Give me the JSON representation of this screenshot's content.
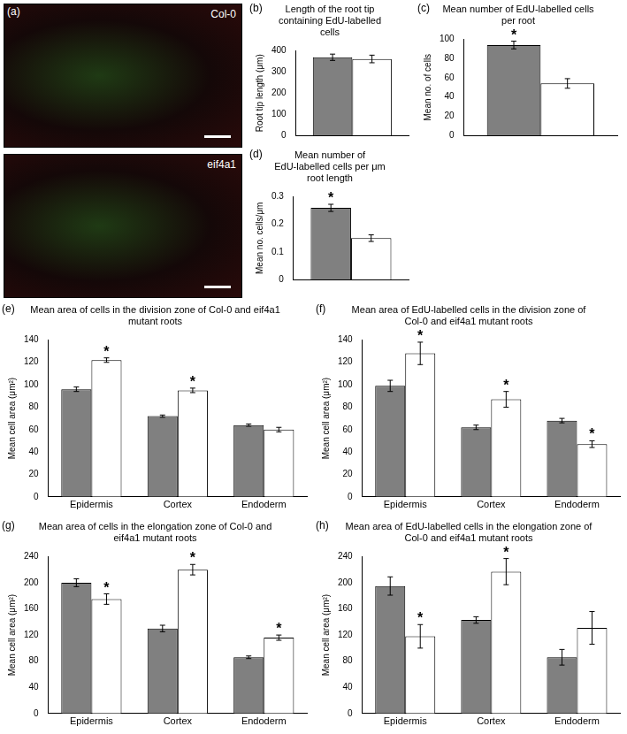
{
  "panel_a": {
    "label": "(a)",
    "images": [
      "Col-0",
      "eif4a1"
    ]
  },
  "chart_data": [
    {
      "panel": "(b)",
      "type": "bar",
      "title": "Length of the root tip containing EdU-labelled cells",
      "y_label": "Root tip length (μm)",
      "categories": [
        null
      ],
      "series": [
        {
          "color": "#808080",
          "values": [
            370
          ],
          "errors": [
            15
          ],
          "annotations": [
            null
          ]
        },
        {
          "color": "#ffffff",
          "values": [
            362
          ],
          "errors": [
            18
          ],
          "annotations": [
            null
          ]
        }
      ],
      "ylim": [
        0,
        400
      ],
      "yticks": [
        0,
        100,
        200,
        300,
        400
      ],
      "grid": false
    },
    {
      "panel": "(c)",
      "type": "bar",
      "title": "Mean number of EdU-labelled cells per root",
      "y_label": "Mean no. of cells",
      "categories": [
        null
      ],
      "series": [
        {
          "color": "#808080",
          "values": [
            94
          ],
          "errors": [
            4
          ],
          "annotations": [
            "*"
          ]
        },
        {
          "color": "#ffffff",
          "values": [
            54
          ],
          "errors": [
            5
          ],
          "annotations": [
            null
          ]
        }
      ],
      "ylim": [
        0,
        100
      ],
      "yticks": [
        0,
        20,
        40,
        60,
        80,
        100
      ],
      "grid": false
    },
    {
      "panel": "(d)",
      "type": "bar",
      "title": "Mean number of EdU-labelled cells per μm root length",
      "y_label": "Mean no. cells/μm",
      "categories": [
        null
      ],
      "series": [
        {
          "color": "#808080",
          "values": [
            0.26
          ],
          "errors": [
            0.013
          ],
          "annotations": [
            "*"
          ]
        },
        {
          "color": "#ffffff",
          "values": [
            0.15
          ],
          "errors": [
            0.012
          ],
          "annotations": [
            null
          ]
        }
      ],
      "ylim": [
        0,
        0.3
      ],
      "yticks": [
        0,
        0.1,
        0.2,
        0.3
      ],
      "grid": false
    },
    {
      "panel": "(e)",
      "type": "bar",
      "title": "Mean area of cells in the division zone of Col-0 and eif4a1 mutant roots",
      "y_label": "Mean cell area (μm²)",
      "categories": [
        "Epidermis",
        "Cortex",
        "Endoderm"
      ],
      "series": [
        {
          "color": "#808080",
          "values": [
            96,
            72,
            64
          ],
          "errors": [
            2,
            1,
            1
          ],
          "annotations": [
            null,
            null,
            null
          ]
        },
        {
          "color": "#ffffff",
          "values": [
            122,
            95,
            60
          ],
          "errors": [
            2,
            2,
            2
          ],
          "annotations": [
            "*",
            "*",
            null
          ]
        }
      ],
      "ylim": [
        0,
        140
      ],
      "yticks": [
        0,
        20,
        40,
        60,
        80,
        100,
        120,
        140
      ],
      "grid": false
    },
    {
      "panel": "(f)",
      "type": "bar",
      "title": "Mean area of EdU-labelled cells in the division zone of Col-0 and eif4a1 mutant roots",
      "y_label": "Mean cell area (μm²)",
      "categories": [
        "Epidermis",
        "Cortex",
        "Endoderm"
      ],
      "series": [
        {
          "color": "#808080",
          "values": [
            99,
            62,
            68
          ],
          "errors": [
            5,
            2,
            2
          ],
          "annotations": [
            null,
            null,
            null
          ]
        },
        {
          "color": "#ffffff",
          "values": [
            128,
            87,
            47
          ],
          "errors": [
            10,
            7,
            3
          ],
          "annotations": [
            "*",
            "*",
            "*"
          ]
        }
      ],
      "ylim": [
        0,
        140
      ],
      "yticks": [
        0,
        20,
        40,
        60,
        80,
        100,
        120,
        140
      ],
      "grid": false
    },
    {
      "panel": "(g)",
      "type": "bar",
      "title": "Mean area of cells in the elongation zone of Col-0 and eif4a1 mutant roots",
      "y_label": "Mean cell area (μm²)",
      "categories": [
        "Epidermis",
        "Cortex",
        "Endoderm"
      ],
      "series": [
        {
          "color": "#808080",
          "values": [
            200,
            130,
            86
          ],
          "errors": [
            6,
            5,
            2
          ],
          "annotations": [
            null,
            null,
            null
          ]
        },
        {
          "color": "#ffffff",
          "values": [
            175,
            220,
            116
          ],
          "errors": [
            8,
            8,
            4
          ],
          "annotations": [
            "*",
            "*",
            "*"
          ]
        }
      ],
      "ylim": [
        0,
        240
      ],
      "yticks": [
        0,
        40,
        80,
        120,
        160,
        200,
        240
      ],
      "grid": false
    },
    {
      "panel": "(h)",
      "type": "bar",
      "title": "Mean area of EdU-labelled cells in the elongation zone of Col-0 and eif4a1 mutant roots",
      "y_label": "Mean cell area (μm²)",
      "categories": [
        "Epidermis",
        "Cortex",
        "Endoderm"
      ],
      "series": [
        {
          "color": "#808080",
          "values": [
            195,
            143,
            86
          ],
          "errors": [
            14,
            5,
            12
          ],
          "annotations": [
            null,
            null,
            null
          ]
        },
        {
          "color": "#ffffff",
          "values": [
            118,
            217,
            131
          ],
          "errors": [
            18,
            20,
            25
          ],
          "annotations": [
            "*",
            "*",
            null
          ]
        }
      ],
      "ylim": [
        0,
        240
      ],
      "yticks": [
        0,
        40,
        80,
        120,
        160,
        200,
        240
      ],
      "grid": false
    }
  ]
}
